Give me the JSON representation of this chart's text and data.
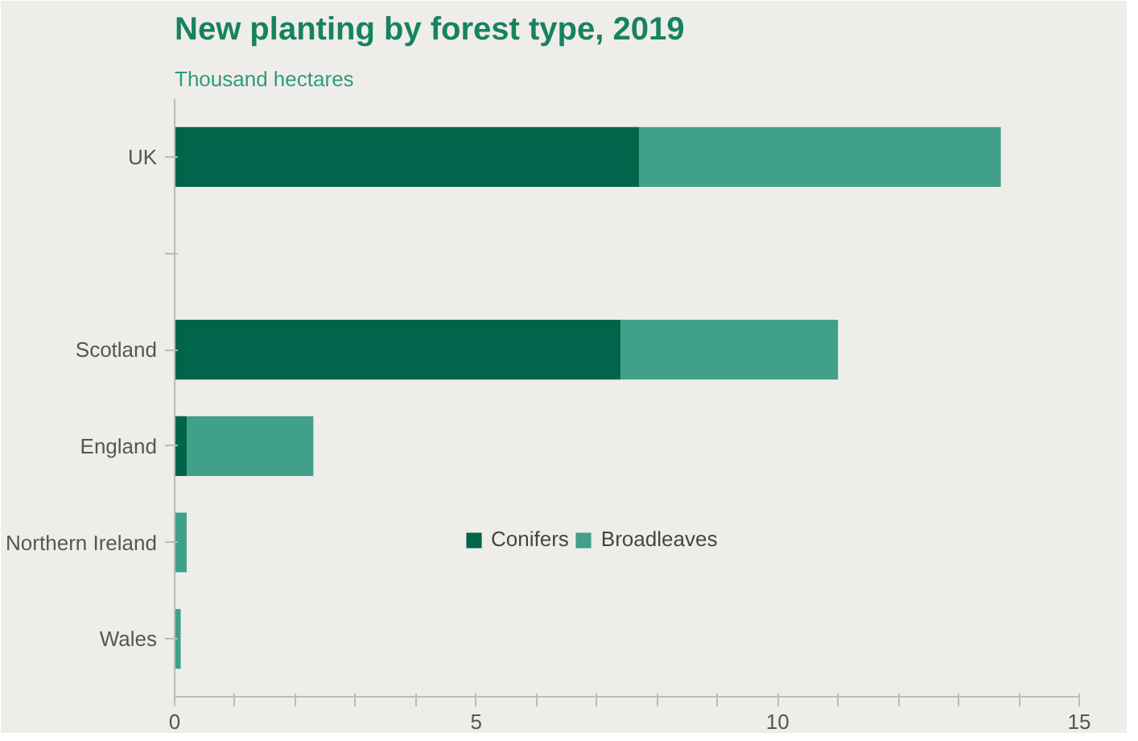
{
  "chart_data": {
    "type": "bar",
    "orientation": "horizontal",
    "stacked": true,
    "title": "New planting by forest type, 2019",
    "subtitle": "Thousand hectares",
    "categories": [
      "UK",
      null,
      "Scotland",
      "England",
      "Northern Ireland",
      "Wales"
    ],
    "series": [
      {
        "name": "Conifers",
        "color": "#00654a",
        "values": [
          7.7,
          null,
          7.4,
          0.2,
          0,
          0
        ]
      },
      {
        "name": "Broadleaves",
        "color": "#40a08a",
        "values": [
          6.0,
          null,
          3.6,
          2.1,
          0.2,
          0.1
        ]
      }
    ],
    "xlim": [
      0,
      15
    ],
    "xticks": [
      0,
      {
        "value": 1,
        "label": null
      },
      {
        "value": 2,
        "label": null
      },
      {
        "value": 3,
        "label": null
      },
      {
        "value": 4,
        "label": null
      },
      5,
      {
        "value": 6,
        "label": null
      },
      {
        "value": 7,
        "label": null
      },
      {
        "value": 8,
        "label": null
      },
      {
        "value": 9,
        "label": null
      },
      10,
      {
        "value": 11,
        "label": null
      },
      {
        "value": 12,
        "label": null
      },
      {
        "value": 13,
        "label": null
      },
      {
        "value": 14,
        "label": null
      },
      15
    ],
    "grid": false,
    "legend": "right"
  }
}
